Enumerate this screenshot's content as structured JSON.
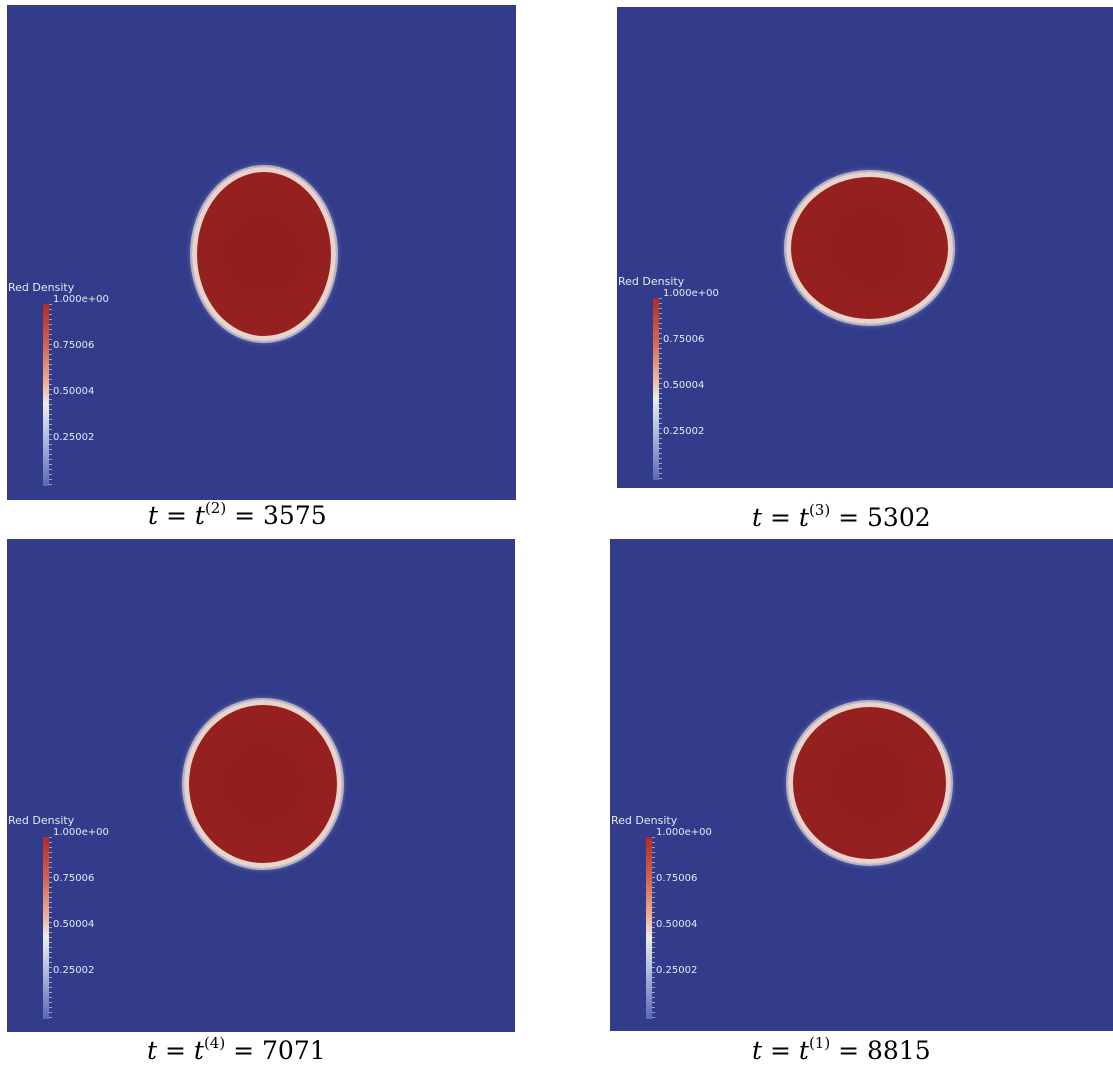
{
  "colors": {
    "background": "#323c8a",
    "droplet": "#962020",
    "interface": "#e9d4cc",
    "legend_text": "#e6e8f4"
  },
  "legend": {
    "title": "Red Density",
    "labels": [
      "1.000e+00",
      "0.75006",
      "0.50004",
      "0.25002"
    ]
  },
  "panels": [
    {
      "caption": {
        "var": "t",
        "superscript": "(2)",
        "value": "3575"
      }
    },
    {
      "caption": {
        "var": "t",
        "superscript": "(3)",
        "value": "5302"
      }
    },
    {
      "caption": {
        "var": "t",
        "superscript": "(4)",
        "value": "7071"
      }
    },
    {
      "caption": {
        "var": "t",
        "superscript": "(1)",
        "value": "8815"
      }
    }
  ]
}
